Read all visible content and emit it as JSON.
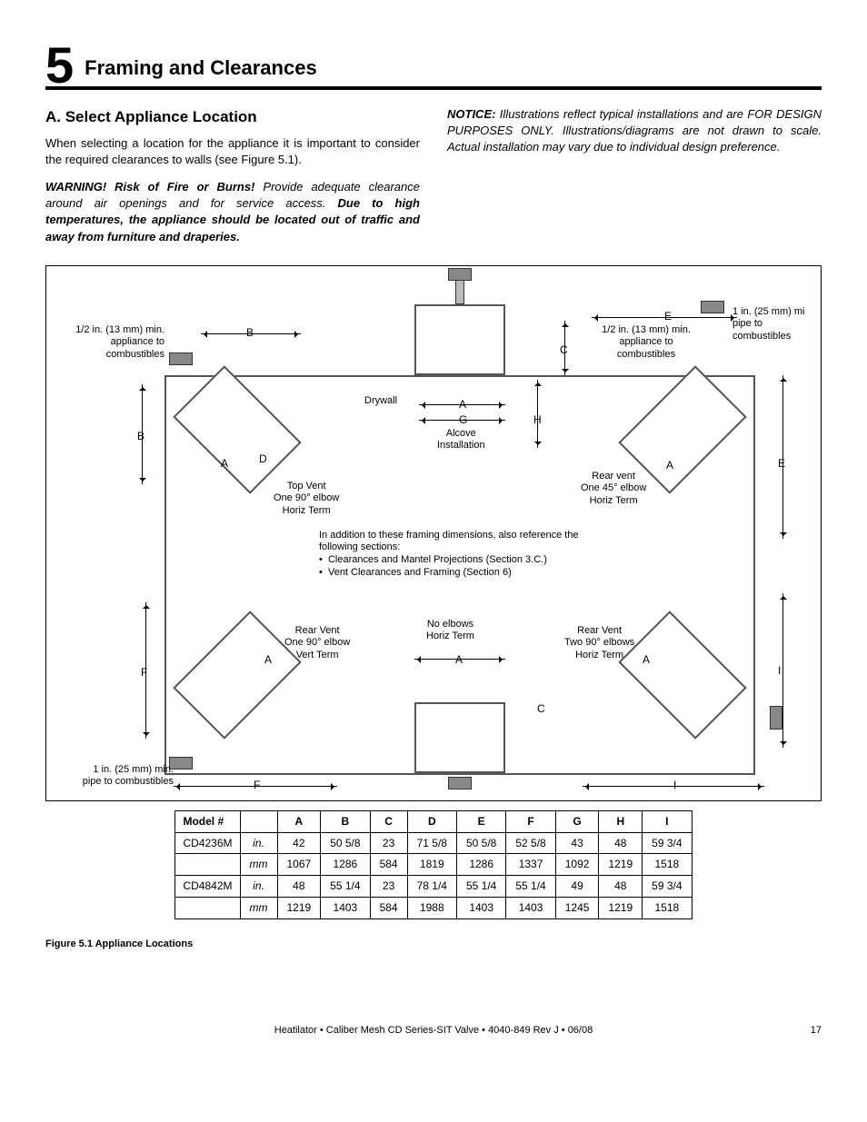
{
  "section": {
    "number": "5",
    "title": "Framing and Clearances"
  },
  "subsection": {
    "heading": "A. Select Appliance Location",
    "body": "When selecting a location for the appliance it is important to consider the required clearances to walls (see Figure 5.1).",
    "warning_label": "WARNING! Risk of Fire or Burns!",
    "warning_body": " Provide adequate clearance around air openings and for service access. ",
    "warning_bold": "Due to high temperatures, the appliance should be located out of traffic and away from furniture and draperies.",
    "notice_label": "NOTICE:",
    "notice_body": " Illustrations reflect typical installations and are FOR DESIGN PURPOSES ONLY. Illustrations/diagrams are not drawn to scale. Actual installation may vary due to individual design preference."
  },
  "diagram": {
    "clearance_half_in_left": "1/2 in. (13 mm) min.\nappliance to\ncombustibles",
    "clearance_half_in_right": "1/2 in. (13 mm) min.\nappliance to\ncombustibles",
    "clearance_one_in_right": "1 in. (25 mm) mi\npipe to\ncombustibles",
    "clearance_one_in_bl": "1 in. (25 mm) min.\npipe to combustibles",
    "drywall": "Drywall",
    "alcove": "Alcove\nInstallation",
    "top_vent": "Top Vent\nOne 90° elbow\nHoriz Term",
    "rear_45": "Rear vent\nOne 45° elbow\nHoriz Term",
    "rear_90_vert": "Rear Vent\nOne 90° elbow\nVert Term",
    "no_elbow": "No elbows\nHoriz Term",
    "rear_two_90": "Rear Vent\nTwo 90° elbows\nHoriz Term",
    "addl_intro": "In addition to these framing dimensions, also reference the following sections:",
    "addl_b1": "Clearances and Mantel Projections (Section 3.C.)",
    "addl_b2": "Vent Clearances and Framing (Section 6)",
    "letters": {
      "A": "A",
      "B": "B",
      "C": "C",
      "D": "D",
      "E": "E",
      "F": "F",
      "G": "G",
      "H": "H",
      "I": "I"
    }
  },
  "table": {
    "headers": [
      "Model #",
      "",
      "A",
      "B",
      "C",
      "D",
      "E",
      "F",
      "G",
      "H",
      "I"
    ],
    "rows": [
      [
        "CD4236M",
        "in.",
        "42",
        "50 5/8",
        "23",
        "71 5/8",
        "50 5/8",
        "52 5/8",
        "43",
        "48",
        "59 3/4"
      ],
      [
        "",
        "mm",
        "1067",
        "1286",
        "584",
        "1819",
        "1286",
        "1337",
        "1092",
        "1219",
        "1518"
      ],
      [
        "CD4842M",
        "in.",
        "48",
        "55 1/4",
        "23",
        "78 1/4",
        "55 1/4",
        "55 1/4",
        "49",
        "48",
        "59 3/4"
      ],
      [
        "",
        "mm",
        "1219",
        "1403",
        "584",
        "1988",
        "1403",
        "1403",
        "1245",
        "1219",
        "1518"
      ]
    ]
  },
  "figure_caption": "Figure 5.1    Appliance Locations",
  "footer": {
    "center": "Heatilator • Caliber Mesh CD Series-SIT Valve • 4040-849 Rev J • 06/08",
    "page": "17"
  }
}
